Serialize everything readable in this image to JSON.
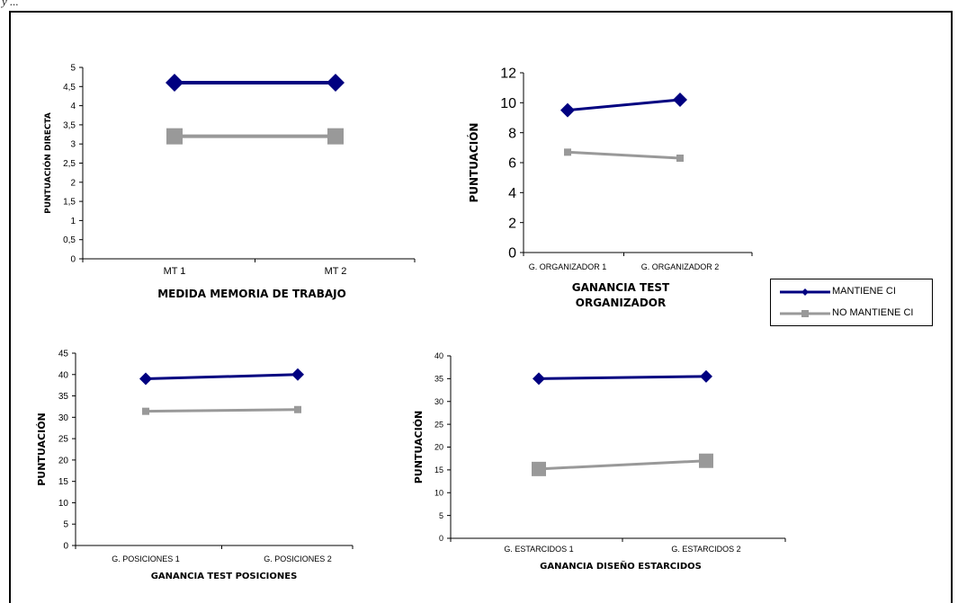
{
  "page": {
    "note": "y ...",
    "legend": [
      {
        "label": "MANTIENE CI",
        "color": "#000080",
        "marker": "diamond"
      },
      {
        "label": "NO MANTIENE CI",
        "color": "#999999",
        "marker": "square"
      }
    ]
  },
  "chart_data": [
    {
      "type": "line",
      "categories": [
        "MT 1",
        "MT 2"
      ],
      "series": [
        {
          "name": "MANTIENE CI",
          "values": [
            4.6,
            4.6
          ]
        },
        {
          "name": "NO MANTIENE CI",
          "values": [
            3.2,
            3.2
          ]
        }
      ],
      "xlabel": "MEDIDA MEMORIA DE TRABAJO",
      "ylabel": "PUNTUACIÓN DIRECTA",
      "ylim": [
        0,
        5
      ],
      "yticks": [
        "0",
        "0,5",
        "1",
        "1,5",
        "2",
        "2,5",
        "3",
        "3,5",
        "4",
        "4,5",
        "5"
      ],
      "grid": false
    },
    {
      "type": "line",
      "categories": [
        "G. ORGANIZADOR 1",
        "G. ORGANIZADOR 2"
      ],
      "series": [
        {
          "name": "MANTIENE CI",
          "values": [
            9.5,
            10.2
          ]
        },
        {
          "name": "NO MANTIENE CI",
          "values": [
            6.7,
            6.3
          ]
        }
      ],
      "xlabel": "GANANCIA TEST ORGANIZADOR",
      "ylabel": "PUNTUACIÓN",
      "ylim": [
        0,
        12
      ],
      "yticks": [
        "0",
        "2",
        "4",
        "6",
        "8",
        "10",
        "12"
      ],
      "grid": false
    },
    {
      "type": "line",
      "categories": [
        "G. POSICIONES 1",
        "G. POSICIONES 2"
      ],
      "series": [
        {
          "name": "MANTIENE CI",
          "values": [
            39,
            40
          ]
        },
        {
          "name": "NO MANTIENE CI",
          "values": [
            31.4,
            31.8
          ]
        }
      ],
      "xlabel": "GANANCIA TEST POSICIONES",
      "ylabel": "PUNTUACIÓN",
      "ylim": [
        0,
        45
      ],
      "yticks": [
        "0",
        "5",
        "10",
        "15",
        "20",
        "25",
        "30",
        "35",
        "40",
        "45"
      ],
      "grid": false
    },
    {
      "type": "line",
      "categories": [
        "G. ESTARCIDOS 1",
        "G. ESTARCIDOS 2"
      ],
      "series": [
        {
          "name": "MANTIENE CI",
          "values": [
            35,
            35.5
          ]
        },
        {
          "name": "NO MANTIENE CI",
          "values": [
            15.2,
            17
          ]
        }
      ],
      "xlabel": "GANANCIA DISEÑO ESTARCIDOS",
      "ylabel": "PUNTUACIÓN",
      "ylim": [
        0,
        40
      ],
      "yticks": [
        "0",
        "5",
        "10",
        "15",
        "20",
        "25",
        "30",
        "35",
        "40"
      ],
      "grid": false
    }
  ]
}
